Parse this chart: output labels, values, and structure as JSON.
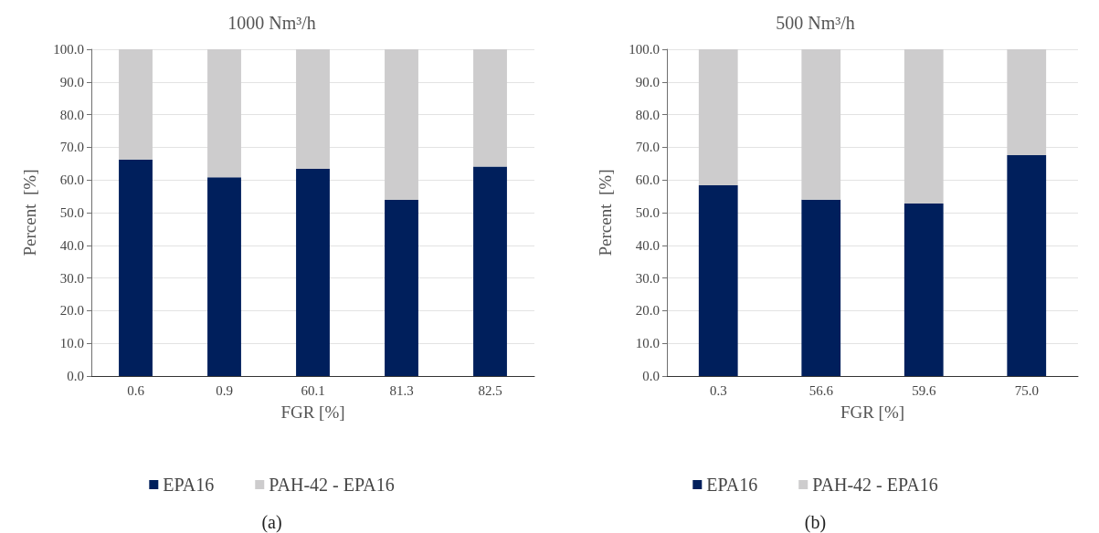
{
  "chart_data": [
    {
      "type": "bar",
      "title": "1000 Nm³/h",
      "xlabel": "FGR [%]",
      "ylabel": "Percent  [%]",
      "categories": [
        "0.6",
        "0.9",
        "60.1",
        "81.3",
        "82.5"
      ],
      "stacked": true,
      "series": [
        {
          "name": "EPA16",
          "color": "#001f5c",
          "values": [
            66.3,
            60.8,
            63.4,
            53.9,
            64.1
          ]
        },
        {
          "name": "PAH-42 - EPA16",
          "color": "#cdcccd",
          "values": [
            33.7,
            39.2,
            36.6,
            46.1,
            35.9
          ]
        }
      ],
      "ylim": [
        0,
        100
      ],
      "yticks": [
        {
          "value": 0,
          "label": "0.0"
        },
        {
          "value": 10,
          "label": "10.0"
        },
        {
          "value": 20,
          "label": "20.0"
        },
        {
          "value": 30,
          "label": "30.0"
        },
        {
          "value": 40,
          "label": "40.0"
        },
        {
          "value": 50,
          "label": "50.0"
        },
        {
          "value": 60,
          "label": "60.0"
        },
        {
          "value": 70,
          "label": "70.0"
        },
        {
          "value": 80,
          "label": "80.0"
        },
        {
          "value": 90,
          "label": "90.0"
        },
        {
          "value": 100,
          "label": "100.0"
        }
      ],
      "grid": "y",
      "legend": "bottom",
      "annotations": [
        "(a)"
      ]
    },
    {
      "type": "bar",
      "title": "500 Nm³/h",
      "xlabel": "FGR [%]",
      "ylabel": "Percent  [%]",
      "categories": [
        "0.3",
        "56.6",
        "59.6",
        "75.0"
      ],
      "stacked": true,
      "series": [
        {
          "name": "EPA16",
          "color": "#001f5c",
          "values": [
            58.4,
            54.0,
            52.8,
            67.6
          ]
        },
        {
          "name": "PAH-42 - EPA16",
          "color": "#cdcccd",
          "values": [
            41.6,
            46.0,
            47.2,
            32.4
          ]
        }
      ],
      "ylim": [
        0,
        100
      ],
      "yticks": [
        {
          "value": 0,
          "label": "0.0"
        },
        {
          "value": 10,
          "label": "10.0"
        },
        {
          "value": 20,
          "label": "20.0"
        },
        {
          "value": 30,
          "label": "30.0"
        },
        {
          "value": 40,
          "label": "40.0"
        },
        {
          "value": 50,
          "label": "50.0"
        },
        {
          "value": 60,
          "label": "60.0"
        },
        {
          "value": 70,
          "label": "70.0"
        },
        {
          "value": 80,
          "label": "80.0"
        },
        {
          "value": 90,
          "label": "90.0"
        },
        {
          "value": 100,
          "label": "100.0"
        }
      ],
      "grid": "y",
      "legend": "bottom",
      "annotations": [
        "(b)"
      ]
    }
  ]
}
